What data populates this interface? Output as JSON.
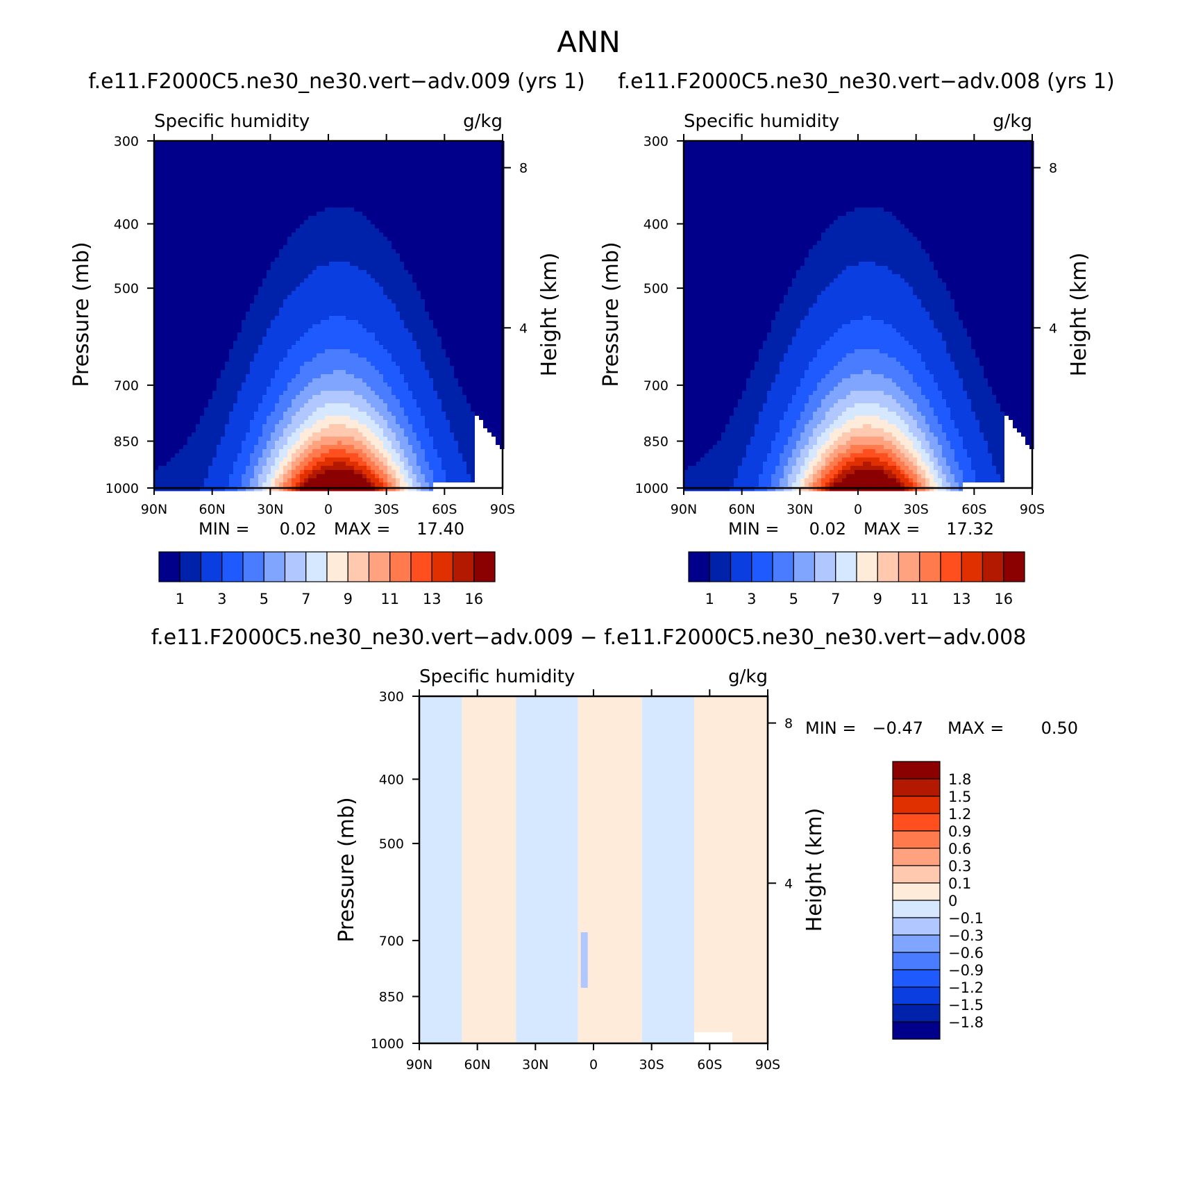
{
  "figure_title": "ANN",
  "colors": {
    "seq": [
      "#00008b",
      "#0022aa",
      "#0a3ee0",
      "#1f5aff",
      "#4a7cff",
      "#7fa5ff",
      "#b0c8ff",
      "#d6e8ff",
      "#ffebd9",
      "#ffc9b0",
      "#ffa27f",
      "#ff7a4d",
      "#ff4f1f",
      "#e03000",
      "#b31800",
      "#8b0000"
    ],
    "div": [
      "#00008b",
      "#0022aa",
      "#0a3ee0",
      "#1f5aff",
      "#4a7cff",
      "#7fa5ff",
      "#b0c8ff",
      "#d6e8ff",
      "#ffebd9",
      "#ffc9b0",
      "#ffa27f",
      "#ff7a4d",
      "#ff4f1f",
      "#e03000",
      "#b31800",
      "#8b0000"
    ]
  },
  "chart_data": [
    {
      "id": "panel1",
      "type": "contour",
      "title": "f.e11.F2000C5.ne30_ne30.vert−adv.009 (yrs 1)",
      "variable": "Specific humidity",
      "units": "g/kg",
      "xlabel": "",
      "ylabel": "Pressure (mb)",
      "ylabel_right": "Height (km)",
      "xticks": [
        "90N",
        "60N",
        "30N",
        "0",
        "30S",
        "60S",
        "90S"
      ],
      "yticks": [
        "300",
        "400",
        "500",
        "700",
        "850",
        "1000"
      ],
      "right_ticks": [
        "8",
        "4"
      ],
      "ylim": [
        300,
        1000
      ],
      "min_label": "MIN =",
      "min_value": "0.02",
      "max_label": "MAX =",
      "max_value": "17.40",
      "colorbar_labels": [
        "1",
        "3",
        "5",
        "7",
        "9",
        "11",
        "13",
        "16"
      ],
      "center_lat": -5,
      "peak": 17.4,
      "surface_max": 17.4,
      "scale_height_km": 1.9
    },
    {
      "id": "panel2",
      "type": "contour",
      "title": "f.e11.F2000C5.ne30_ne30.vert−adv.008 (yrs 1)",
      "variable": "Specific humidity",
      "units": "g/kg",
      "xlabel": "",
      "ylabel": "Pressure (mb)",
      "ylabel_right": "Height (km)",
      "xticks": [
        "90N",
        "60N",
        "30N",
        "0",
        "30S",
        "60S",
        "90S"
      ],
      "yticks": [
        "300",
        "400",
        "500",
        "700",
        "850",
        "1000"
      ],
      "right_ticks": [
        "8",
        "4"
      ],
      "ylim": [
        300,
        1000
      ],
      "min_label": "MIN =",
      "min_value": "0.02",
      "max_label": "MAX =",
      "max_value": "17.32",
      "colorbar_labels": [
        "1",
        "3",
        "5",
        "7",
        "9",
        "11",
        "13",
        "16"
      ],
      "center_lat": -5,
      "peak": 17.32,
      "surface_max": 17.32,
      "scale_height_km": 1.9
    },
    {
      "id": "panel3",
      "type": "contour",
      "title": "f.e11.F2000C5.ne30_ne30.vert−adv.009 − f.e11.F2000C5.ne30_ne30.vert−adv.008",
      "variable": "Specific humidity",
      "units": "g/kg",
      "xlabel": "",
      "ylabel": "Pressure (mb)",
      "ylabel_right": "Height (km)",
      "xticks": [
        "90N",
        "60N",
        "30N",
        "0",
        "30S",
        "60S",
        "90S"
      ],
      "yticks": [
        "300",
        "400",
        "500",
        "700",
        "850",
        "1000"
      ],
      "right_ticks": [
        "8",
        "4"
      ],
      "ylim": [
        300,
        1000
      ],
      "min_label": "MIN =",
      "min_value": "−0.47",
      "max_label": "MAX =",
      "max_value": "0.50",
      "colorbar_labels": [
        "1.8",
        "1.5",
        "1.2",
        "0.9",
        "0.6",
        "0.3",
        "0.1",
        "0",
        "−0.1",
        "−0.3",
        "−0.6",
        "−0.9",
        "−1.2",
        "−1.5",
        "−1.8"
      ],
      "difference_regions": [
        {
          "lat_from": 90,
          "lat_to": 68,
          "value": -0.05
        },
        {
          "lat_from": 68,
          "lat_to": 40,
          "value": 0.05
        },
        {
          "lat_from": 40,
          "lat_to": 8,
          "value": -0.05
        },
        {
          "lat_from": 8,
          "lat_to": -25,
          "value": 0.05
        },
        {
          "lat_from": -25,
          "lat_to": -52,
          "value": -0.05
        },
        {
          "lat_from": -52,
          "lat_to": -90,
          "value": 0.05
        }
      ]
    }
  ]
}
